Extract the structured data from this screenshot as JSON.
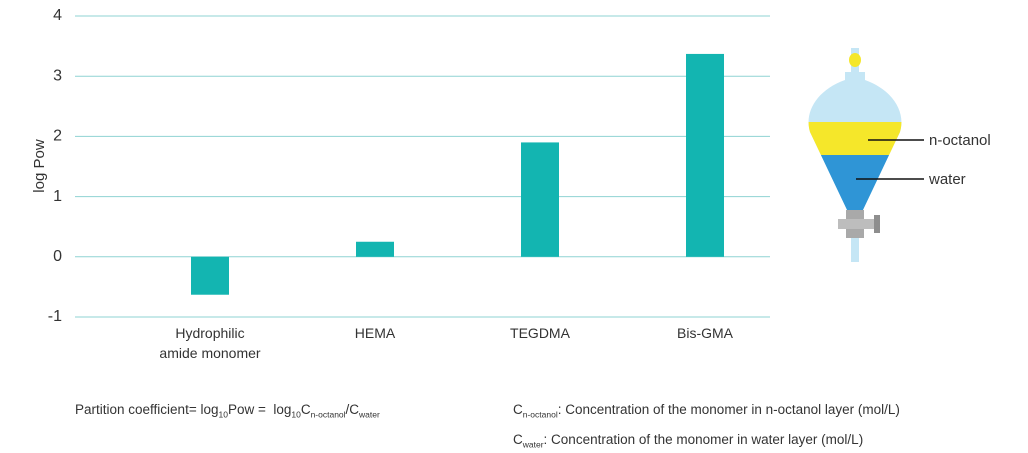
{
  "chart_data": {
    "type": "bar",
    "y_label": "log Pow",
    "categories": [
      "Hydrophilic\namide monomer",
      "HEMA",
      "TEGDMA",
      "Bis-GMA"
    ],
    "values": [
      -0.63,
      0.25,
      1.9,
      3.37
    ],
    "color": "#13b5b1",
    "ylim": [
      -1,
      4
    ],
    "yticks": [
      -1,
      0,
      1,
      2,
      3,
      4
    ],
    "grid": true,
    "funnel_labels": [
      "n-octanol",
      "water"
    ],
    "formula": [
      {
        "text": "Partition coefficient= log",
        "sub": false
      },
      {
        "text": "10",
        "sub": true
      },
      {
        "text": "Pow =  log",
        "sub": false
      },
      {
        "text": "10",
        "sub": true
      },
      {
        "text": "C",
        "sub": false
      },
      {
        "text": "n-octanol",
        "sub": true
      },
      {
        "text": "/C",
        "sub": false
      },
      {
        "text": "water",
        "sub": true
      }
    ],
    "definitions": [
      [
        {
          "text": "C",
          "sub": false
        },
        {
          "text": "n-octanol",
          "sub": true
        },
        {
          "text": ": Concentration of the monomer in n-octanol layer (mol/L)",
          "sub": false
        }
      ],
      [
        {
          "text": "C",
          "sub": false
        },
        {
          "text": "water",
          "sub": true
        },
        {
          "text": ": Concentration of the monomer in water layer (mol/L)",
          "sub": false
        }
      ]
    ]
  }
}
